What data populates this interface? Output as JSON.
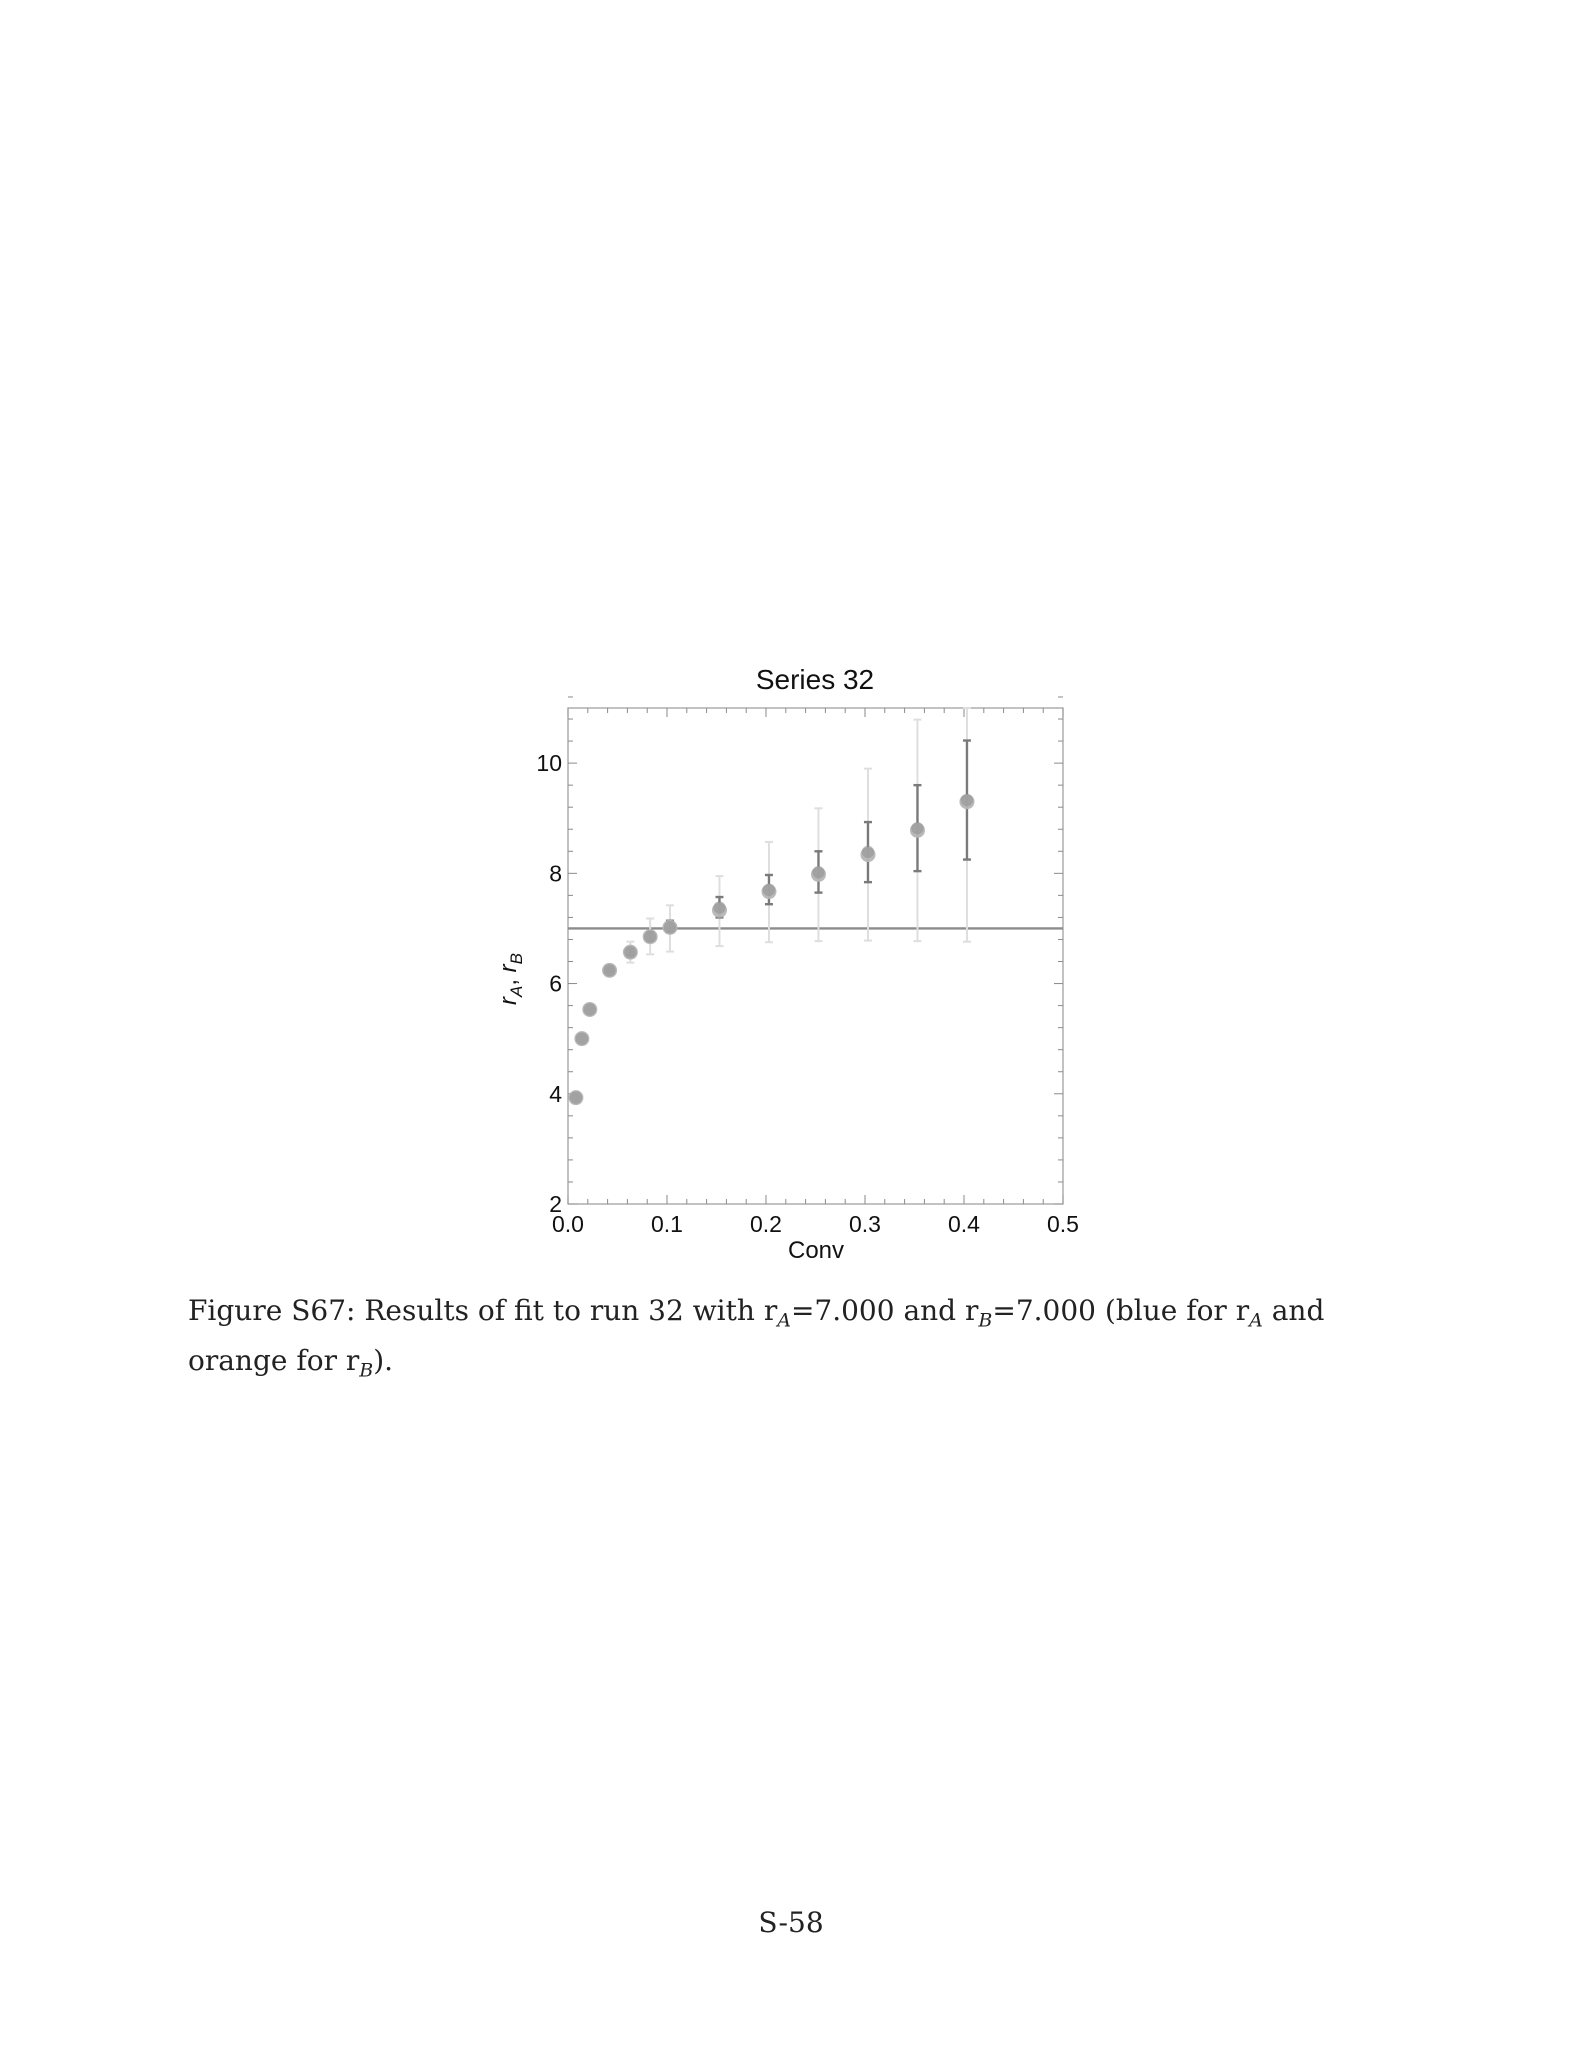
{
  "chart_data": {
    "type": "scatter",
    "title": "Series 32",
    "xlabel": "Conv",
    "ylabel": "r_A, r_B",
    "xlim": [
      0.0,
      0.5
    ],
    "ylim": [
      2,
      11
    ],
    "x_ticks": [
      "0.0",
      "0.1",
      "0.2",
      "0.3",
      "0.4",
      "0.5"
    ],
    "y_ticks": [
      "2",
      "4",
      "6",
      "8",
      "10"
    ],
    "reference_line": {
      "y": 7.0
    },
    "series": [
      {
        "color": "#b5b5b5",
        "error_color": "#dedede",
        "points": [
          {
            "x": 0.008,
            "y": 3.93,
            "err_low": 3.93,
            "err_high": 3.93
          },
          {
            "x": 0.014,
            "y": 5.0,
            "err_low": 5.0,
            "err_high": 5.0
          },
          {
            "x": 0.022,
            "y": 5.53,
            "err_low": 5.53,
            "err_high": 5.53
          },
          {
            "x": 0.042,
            "y": 6.24,
            "err_low": 6.2,
            "err_high": 6.3
          },
          {
            "x": 0.063,
            "y": 6.57,
            "err_low": 6.38,
            "err_high": 6.76
          },
          {
            "x": 0.083,
            "y": 6.85,
            "err_low": 6.53,
            "err_high": 7.18
          },
          {
            "x": 0.103,
            "y": 7.02,
            "err_low": 6.58,
            "err_high": 7.42
          },
          {
            "x": 0.153,
            "y": 7.33,
            "err_low": 6.68,
            "err_high": 7.95
          },
          {
            "x": 0.203,
            "y": 7.67,
            "err_low": 6.75,
            "err_high": 8.57
          },
          {
            "x": 0.253,
            "y": 7.98,
            "err_low": 6.77,
            "err_high": 9.18
          },
          {
            "x": 0.303,
            "y": 8.34,
            "err_low": 6.78,
            "err_high": 9.9
          },
          {
            "x": 0.353,
            "y": 8.78,
            "err_low": 6.77,
            "err_high": 10.79
          },
          {
            "x": 0.403,
            "y": 9.3,
            "err_low": 6.76,
            "err_high": 11.0
          }
        ]
      },
      {
        "color": "#8f8f8f",
        "error_color": "#7a7a7a",
        "points": [
          {
            "x": 0.008,
            "y": 3.93,
            "err_low": 3.93,
            "err_high": 3.93
          },
          {
            "x": 0.014,
            "y": 5.0,
            "err_low": 5.0,
            "err_high": 5.0
          },
          {
            "x": 0.022,
            "y": 5.53,
            "err_low": 5.53,
            "err_high": 5.53
          },
          {
            "x": 0.042,
            "y": 6.24,
            "err_low": 6.22,
            "err_high": 6.27
          },
          {
            "x": 0.063,
            "y": 6.57,
            "err_low": 6.52,
            "err_high": 6.64
          },
          {
            "x": 0.083,
            "y": 6.85,
            "err_low": 6.78,
            "err_high": 6.94
          },
          {
            "x": 0.103,
            "y": 7.02,
            "err_low": 6.93,
            "err_high": 7.14
          },
          {
            "x": 0.153,
            "y": 7.38,
            "err_low": 7.2,
            "err_high": 7.57
          },
          {
            "x": 0.203,
            "y": 7.7,
            "err_low": 7.44,
            "err_high": 7.97
          },
          {
            "x": 0.253,
            "y": 8.02,
            "err_low": 7.65,
            "err_high": 8.4
          },
          {
            "x": 0.303,
            "y": 8.39,
            "err_low": 7.84,
            "err_high": 8.93
          },
          {
            "x": 0.353,
            "y": 8.82,
            "err_low": 8.04,
            "err_high": 9.6
          },
          {
            "x": 0.403,
            "y": 9.33,
            "err_low": 8.25,
            "err_high": 10.41
          }
        ]
      }
    ]
  },
  "caption": {
    "prefix": "Figure S67: Results of fit to run 32 with r",
    "sub_a": "A",
    "mid1": "=7.000 and r",
    "sub_b": "B",
    "mid2": "=7.000 (blue for r",
    "sub_a2": "A",
    "mid3": " and orange for r",
    "sub_b2": "B",
    "suffix": ")."
  },
  "page_number": "S-58"
}
